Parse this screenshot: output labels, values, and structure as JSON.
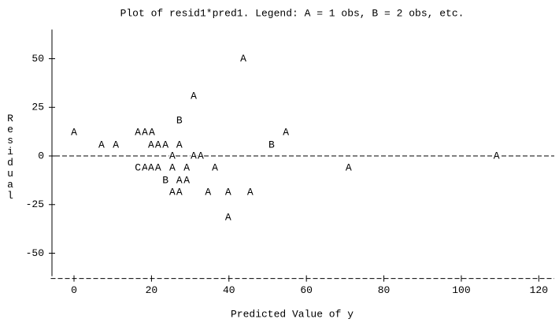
{
  "chart_data": {
    "type": "scatter",
    "title": "Plot of resid1*pred1.  Legend: A = 1 obs, B = 2 obs, etc.",
    "xlabel": "Predicted Value of y",
    "ylabel": "Residual",
    "x": [
      43.7,
      30.9,
      27.2,
      0,
      16.5,
      18.3,
      20.1,
      54.7,
      7.1,
      10.8,
      19.9,
      21.7,
      23.6,
      27.2,
      51.0,
      25.4,
      30.9,
      32.7,
      109.1,
      16.5,
      18.3,
      19.9,
      21.7,
      25.4,
      29.1,
      36.4,
      70.9,
      23.6,
      27.2,
      29.1,
      25.4,
      27.2,
      34.6,
      39.8,
      45.5,
      39.8
    ],
    "values": [
      50,
      30.8,
      18.2,
      12.1,
      12.1,
      12.1,
      12.1,
      12.1,
      5.7,
      5.7,
      5.7,
      5.7,
      5.7,
      5.7,
      5.7,
      0,
      0,
      0,
      0,
      -6.1,
      -6.1,
      -6.1,
      -6.1,
      -6.1,
      -6.1,
      -6.1,
      -6.1,
      -12.6,
      -12.6,
      -12.6,
      -18.6,
      -18.6,
      -18.6,
      -18.6,
      -18.6,
      -31.6
    ],
    "symbols": [
      "A",
      "A",
      "B",
      "A",
      "A",
      "A",
      "A",
      "A",
      "A",
      "A",
      "A",
      "A",
      "A",
      "A",
      "B",
      "A",
      "A",
      "A",
      "A",
      "C",
      "A",
      "A",
      "A",
      "A",
      "A",
      "A",
      "A",
      "B",
      "A",
      "A",
      "A",
      "A",
      "A",
      "A",
      "A",
      "A"
    ],
    "xlim": [
      -6,
      124
    ],
    "ylim": [
      -63,
      65
    ],
    "xticks": [
      0,
      20,
      40,
      60,
      80,
      100,
      120
    ],
    "yticks": [
      -50,
      -25,
      0,
      25,
      50
    ],
    "reference_line_y": 0
  }
}
